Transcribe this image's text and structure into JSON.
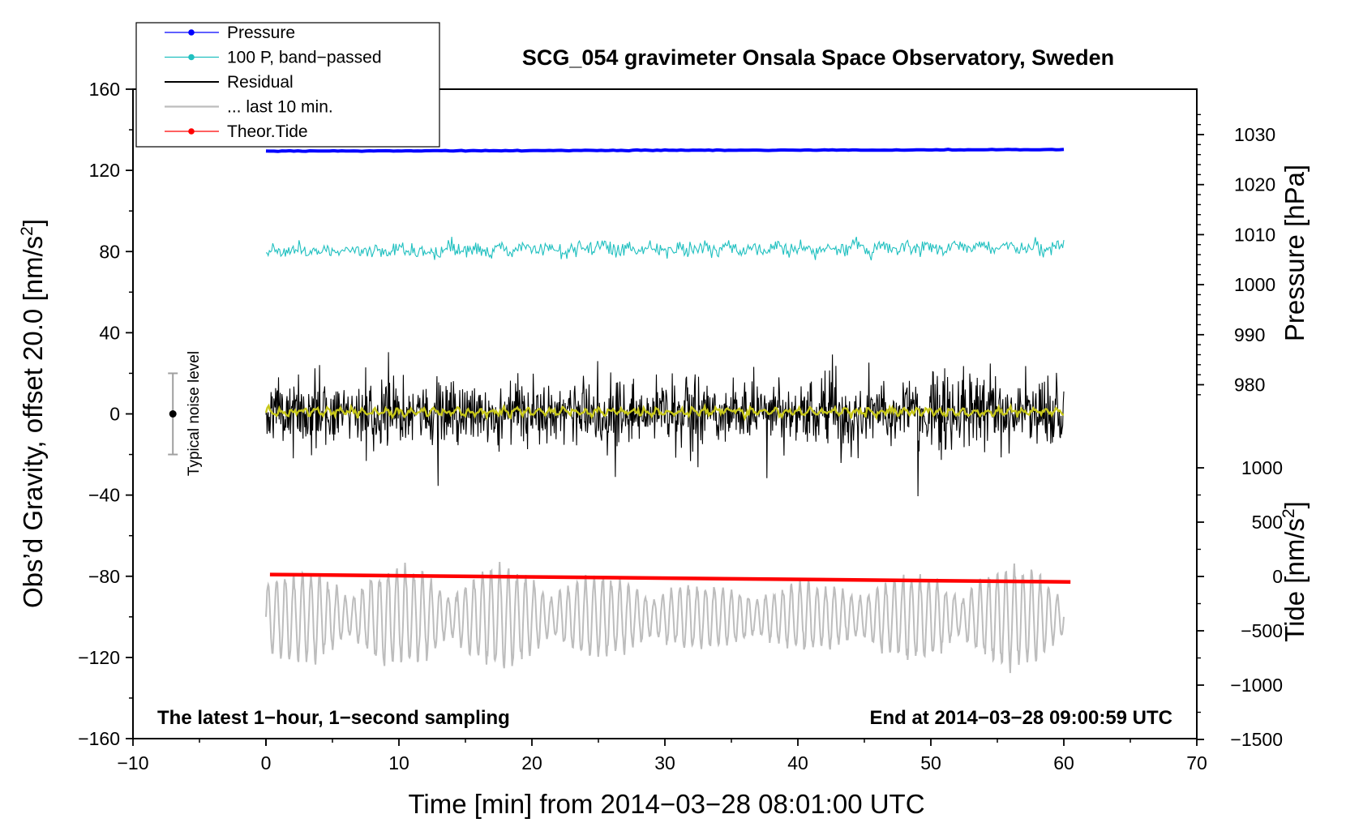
{
  "chart_data": {
    "type": "line",
    "title": "SCG_054 gravimeter Onsala Space Observatory, Sweden",
    "xlabel": "Time [min] from 2014−03−28 08:01:00 UTC",
    "ylabel_main": "Obs’d Gravity, offset 20.0 [nm/s",
    "ylabel_main_sup": "2",
    "ylabel_main_end": "]",
    "ylabel_pressure": "Pressure [hPa]",
    "ylabel_tide": "Tide [nm/s",
    "ylabel_tide_sup": "2",
    "ylabel_tide_end": "]",
    "xlim": [
      -10,
      70
    ],
    "ylim": [
      -160,
      160
    ],
    "x_ticks": [
      -10,
      0,
      10,
      20,
      30,
      40,
      50,
      60,
      70
    ],
    "x_tick_labels": [
      "−10",
      "0",
      "10",
      "20",
      "30",
      "40",
      "50",
      "60",
      "70"
    ],
    "y_ticks": [
      160,
      120,
      80,
      40,
      0,
      -40,
      -80,
      -120,
      -160
    ],
    "y_tick_labels": [
      "160",
      "120",
      "80",
      "40",
      "0",
      "−40",
      "−80",
      "−120",
      "−160"
    ],
    "pressure_axis": {
      "range_hpa": [
        978,
        1035
      ],
      "ticks": [
        1030,
        1020,
        1010,
        1000,
        990,
        980
      ],
      "tick_labels": [
        "1030",
        "1020",
        "1010",
        "1000",
        "990",
        "980"
      ]
    },
    "tide_axis": {
      "range": [
        -1500,
        1000
      ],
      "ticks": [
        1000,
        500,
        0,
        -500,
        -1000,
        -1500
      ],
      "tick_labels": [
        "1000",
        "500",
        "0",
        "−500",
        "−1000",
        "−1500"
      ]
    },
    "series": [
      {
        "name": "Pressure",
        "color": "#0000ff",
        "unit": "hPa",
        "start": 1026.7,
        "end": 1027.0
      },
      {
        "name": "100 P, band−passed",
        "color": "#20c0c0",
        "unit": "nm/s2 (plotted)",
        "level": 80,
        "amplitude": 10
      },
      {
        "name": "Residual",
        "color": "#000000",
        "unit": "nm/s2 (plotted)",
        "level": 0,
        "amplitude": 45
      },
      {
        "name": "... last 10 min.",
        "color": "#bdbdbd",
        "unit": "nm/s2 (plotted)",
        "level": -100,
        "amplitude": 45
      },
      {
        "name": "Theor.Tide",
        "color": "#ff0000",
        "unit": "nm/s2",
        "start": 18,
        "end": -50
      },
      {
        "name": "smoothed residual",
        "color": "#c8c81a",
        "unit": "nm/s2 (plotted)",
        "level": 1,
        "amplitude": 3
      }
    ],
    "annotations": {
      "left_note": "The latest 1−hour, 1−second sampling",
      "right_note": "End at 2014−03−28 09:00:59 UTC",
      "noise_label": "Typical noise level",
      "noise_bar": {
        "x": -7,
        "y_center": 0,
        "half_range": 20
      }
    },
    "legend_position": "top-left",
    "grid": false
  },
  "colors": {
    "pressure": "#0000ff",
    "bandpassed": "#20c0c0",
    "residual": "#000000",
    "last10": "#bdbdbd",
    "tide": "#ff0000",
    "smoothed": "#c8c81a",
    "noise_bar": "#a0a0a0"
  }
}
